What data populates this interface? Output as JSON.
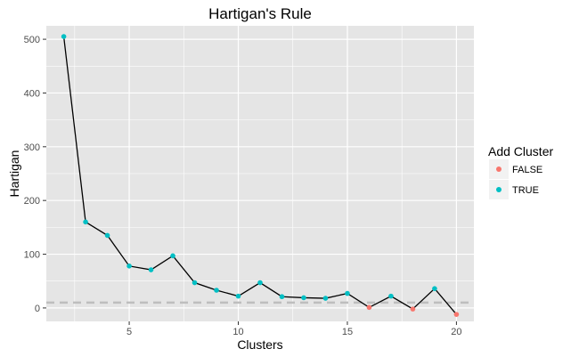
{
  "chart_data": {
    "type": "line",
    "title": "Hartigan's Rule",
    "xlabel": "Clusters",
    "ylabel": "Hartigan",
    "xlim": [
      1.2,
      20.8
    ],
    "ylim": [
      -25,
      525
    ],
    "x_ticks": [
      5,
      10,
      15,
      20
    ],
    "y_ticks": [
      0,
      100,
      200,
      300,
      400,
      500
    ],
    "grid": true,
    "background": "#e5e5e5",
    "grid_color": "#ffffff",
    "reference_line": {
      "y": 10,
      "style": "dashed",
      "color": "#bebebe"
    },
    "legend": {
      "title": "Add Cluster",
      "placement": "right",
      "entries": [
        {
          "label": "FALSE",
          "color": "#f8766d"
        },
        {
          "label": "TRUE",
          "color": "#00bfc4"
        }
      ]
    },
    "line_color": "#000000",
    "points": [
      {
        "x": 2,
        "y": 505,
        "add": "TRUE"
      },
      {
        "x": 3,
        "y": 160,
        "add": "TRUE"
      },
      {
        "x": 4,
        "y": 135,
        "add": "TRUE"
      },
      {
        "x": 5,
        "y": 78,
        "add": "TRUE"
      },
      {
        "x": 6,
        "y": 71,
        "add": "TRUE"
      },
      {
        "x": 7,
        "y": 97,
        "add": "TRUE"
      },
      {
        "x": 8,
        "y": 47,
        "add": "TRUE"
      },
      {
        "x": 9,
        "y": 33,
        "add": "TRUE"
      },
      {
        "x": 10,
        "y": 22,
        "add": "TRUE"
      },
      {
        "x": 11,
        "y": 47,
        "add": "TRUE"
      },
      {
        "x": 12,
        "y": 21,
        "add": "TRUE"
      },
      {
        "x": 13,
        "y": 19,
        "add": "TRUE"
      },
      {
        "x": 14,
        "y": 18,
        "add": "TRUE"
      },
      {
        "x": 15,
        "y": 27,
        "add": "TRUE"
      },
      {
        "x": 16,
        "y": 1,
        "add": "FALSE"
      },
      {
        "x": 17,
        "y": 22,
        "add": "TRUE"
      },
      {
        "x": 18,
        "y": -2,
        "add": "FALSE"
      },
      {
        "x": 19,
        "y": 36,
        "add": "TRUE"
      },
      {
        "x": 20,
        "y": -12,
        "add": "FALSE"
      }
    ]
  }
}
